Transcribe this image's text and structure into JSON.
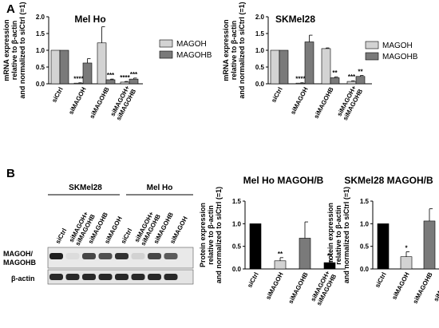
{
  "panels": {
    "a": "A",
    "b": "B"
  },
  "ylabel_a_lines": [
    "mRNA expression",
    "relative to β-actin",
    "and normalized to siCtrl (=1)"
  ],
  "ylabel_b_lines": [
    "Protein expression",
    "relative to β-actin",
    "and normalized to siCtrl (=1)"
  ],
  "colors": {
    "magoh": "#d3d3d3",
    "magohb": "#7a7a7a",
    "ctrl_b": "#000000",
    "kd_b": "#d3d3d3",
    "kd2_b": "#7a7a7a"
  },
  "blot": {
    "groups": [
      "SKMel28",
      "Mel Ho"
    ],
    "lanes": [
      "siCtrl",
      "siMAGOH+\nsiMAGOHB",
      "siMAGOHB",
      "siMAGOH",
      "siCtrl",
      "siMAGOH+\nsiMAGOHB",
      "siMAGOHB",
      "siMAGOH"
    ],
    "row_labels": [
      "MAGOH/\nMAGOHB",
      "β-actin"
    ],
    "magoh_band_intensity": [
      1.0,
      0.05,
      0.8,
      0.75,
      0.9,
      0.1,
      0.8,
      0.7
    ],
    "actin_band_intensity": [
      1.0,
      1.0,
      1.0,
      1.0,
      1.0,
      1.0,
      1.0,
      1.0
    ]
  },
  "chart_data": [
    {
      "type": "bar",
      "title": "Mel Ho",
      "ylim": [
        0,
        2.0
      ],
      "yticks": [
        "0.0",
        "0.5",
        "1.0",
        "1.5",
        "2.0"
      ],
      "categories": [
        "siCtrl",
        "siMAGOH",
        "siMAGOHB",
        "siMAGOH+\nsiMAGOHB"
      ],
      "legend_position": "top-right",
      "series": [
        {
          "name": "MAGOH",
          "color": "#d3d3d3",
          "values": [
            1.0,
            0.02,
            1.22,
            0.05
          ],
          "errors": [
            0.0,
            0.01,
            0.48,
            0.02
          ]
        },
        {
          "name": "MAGOHB",
          "color": "#7a7a7a",
          "values": [
            1.0,
            0.62,
            0.12,
            0.14
          ],
          "errors": [
            0.0,
            0.13,
            0.02,
            0.03
          ]
        }
      ],
      "significance": [
        {
          "category": 1,
          "series": 0,
          "label": "****"
        },
        {
          "category": 2,
          "series": 1,
          "label": "***"
        },
        {
          "category": 3,
          "series": 0,
          "label": "****"
        },
        {
          "category": 3,
          "series": 1,
          "label": "***"
        }
      ]
    },
    {
      "type": "bar",
      "title": "SKMel28",
      "ylim": [
        0,
        2.0
      ],
      "yticks": [
        "0.0",
        "0.5",
        "1.0",
        "1.5",
        "2.0"
      ],
      "categories": [
        "siCtrl",
        "siMAGOH",
        "siMAGOHB",
        "siMAGOH+\nsiMAGOHB"
      ],
      "legend_position": "top-right",
      "series": [
        {
          "name": "MAGOH",
          "color": "#d3d3d3",
          "values": [
            1.0,
            0.02,
            1.05,
            0.07
          ],
          "errors": [
            0.0,
            0.01,
            0.02,
            0.02
          ]
        },
        {
          "name": "MAGOHB",
          "color": "#7a7a7a",
          "values": [
            1.0,
            1.25,
            0.18,
            0.22
          ],
          "errors": [
            0.0,
            0.2,
            0.03,
            0.03
          ]
        }
      ],
      "significance": [
        {
          "category": 1,
          "series": 0,
          "label": "****"
        },
        {
          "category": 2,
          "series": 1,
          "label": "**"
        },
        {
          "category": 3,
          "series": 0,
          "label": "***"
        },
        {
          "category": 3,
          "series": 1,
          "label": "**"
        }
      ]
    },
    {
      "type": "bar",
      "title": "Mel Ho MAGOH/B",
      "ylim": [
        0,
        1.5
      ],
      "yticks": [
        "0.0",
        "0.5",
        "1.0",
        "1.5"
      ],
      "categories": [
        "siCtrl",
        "siMAGOH",
        "siMAGOHB",
        "siMAGOH+\nsiMAGOHB"
      ],
      "bar_colors": [
        "#000000",
        "#d3d3d3",
        "#7a7a7a",
        "#000000"
      ],
      "values": [
        1.0,
        0.18,
        0.68,
        0.14
      ],
      "errors": [
        0.0,
        0.07,
        0.36,
        0.06
      ],
      "significance": [
        {
          "category": 1,
          "label": "**"
        },
        {
          "category": 3,
          "label": "**"
        }
      ]
    },
    {
      "type": "bar",
      "title": "SKMel28 MAGOH/B",
      "ylim": [
        0,
        1.5
      ],
      "yticks": [
        "0.0",
        "0.5",
        "1.0",
        "1.5"
      ],
      "categories": [
        "siCtrl",
        "siMAGOH",
        "siMAGOHB",
        "siMAGOH+\nsiMAGOHB"
      ],
      "bar_colors": [
        "#000000",
        "#d3d3d3",
        "#7a7a7a",
        "#000000"
      ],
      "values": [
        1.0,
        0.27,
        1.06,
        0.25
      ],
      "errors": [
        0.0,
        0.11,
        0.27,
        0.17
      ],
      "significance": [
        {
          "category": 1,
          "label": "*"
        },
        {
          "category": 3,
          "label": "*"
        }
      ]
    }
  ]
}
